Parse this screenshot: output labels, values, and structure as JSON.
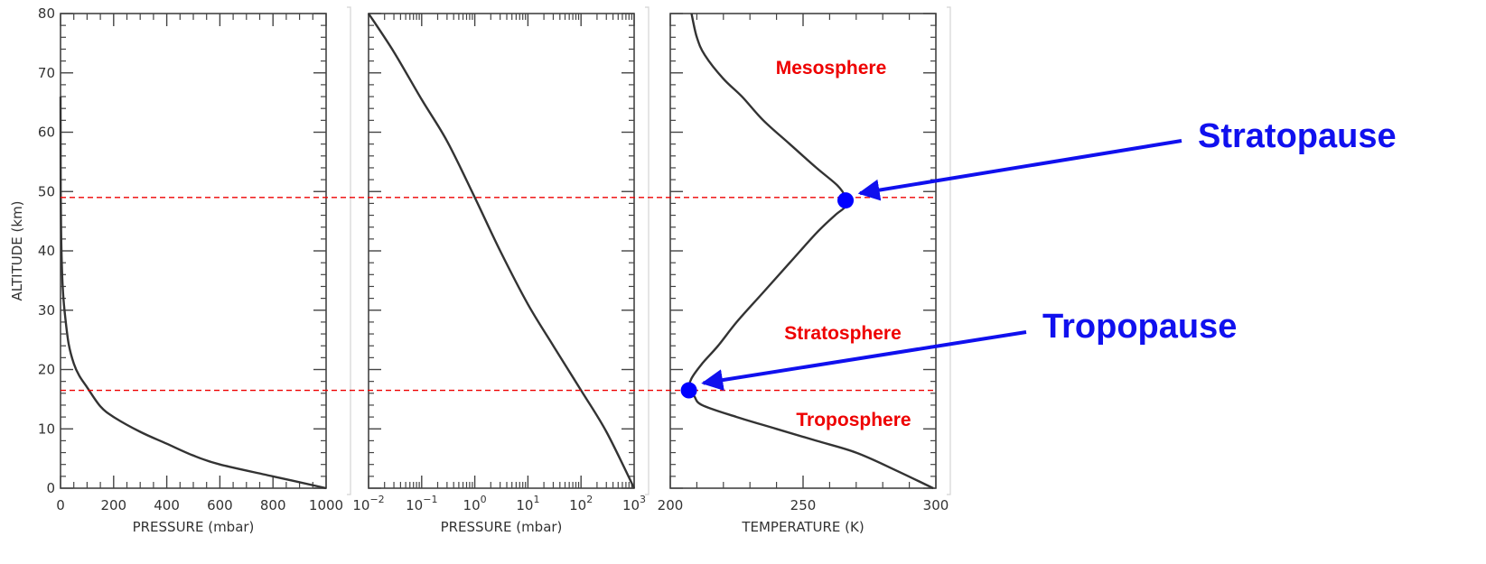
{
  "chart_data": [
    {
      "type": "line",
      "ylabel": "ALTITUDE (km)",
      "xlabel": "PRESSURE (mbar)",
      "xlim": [
        0,
        1000
      ],
      "ylim": [
        0,
        80
      ],
      "x_ticks": [
        "0",
        "200",
        "400",
        "600",
        "800",
        "1000"
      ],
      "y_ticks": [
        "0",
        "10",
        "20",
        "30",
        "40",
        "50",
        "60",
        "70",
        "80"
      ],
      "series": [
        {
          "x": [
            1000,
            800,
            600,
            500,
            400,
            300,
            200,
            150,
            100,
            70,
            50,
            30,
            15,
            8,
            4,
            2,
            0.8,
            0.3,
            0.1
          ],
          "y": [
            0,
            2,
            4,
            5.5,
            7.5,
            9.5,
            12,
            13.8,
            17,
            19,
            21,
            24.5,
            30,
            34,
            39,
            44,
            50,
            57,
            66
          ]
        }
      ]
    },
    {
      "type": "line",
      "xlabel": "PRESSURE (mbar)",
      "xscale": "log",
      "xlim": [
        0.01,
        1000
      ],
      "ylim": [
        0,
        80
      ],
      "x_ticks": [
        {
          "base": "10",
          "exp": "−2"
        },
        {
          "base": "10",
          "exp": "−1"
        },
        {
          "base": "10",
          "exp": "0"
        },
        {
          "base": "10",
          "exp": "1"
        },
        {
          "base": "10",
          "exp": "2"
        },
        {
          "base": "10",
          "exp": "3"
        }
      ],
      "series": [
        {
          "x": [
            1000,
            300,
            100,
            30,
            10,
            3,
            1,
            0.3,
            0.1,
            0.03,
            0.01
          ],
          "y": [
            0,
            9.5,
            16.5,
            24,
            31,
            40,
            49,
            58.5,
            65.5,
            73.5,
            80
          ]
        }
      ]
    },
    {
      "type": "line",
      "xlabel": "TEMPERATURE (K)",
      "xlim": [
        200,
        300
      ],
      "ylim": [
        0,
        80
      ],
      "x_ticks": [
        "200",
        "250",
        "300"
      ],
      "series": [
        {
          "x": [
            299,
            285,
            270,
            255,
            240,
            225,
            212,
            209,
            207,
            208,
            212,
            218,
            225,
            235,
            245,
            255,
            262,
            266,
            266,
            263,
            255,
            245,
            235,
            227,
            220,
            213,
            210,
            208
          ],
          "y": [
            0,
            3,
            6,
            8,
            10,
            12,
            14,
            15.5,
            16.5,
            18.5,
            21,
            24,
            28,
            33,
            38,
            43,
            46,
            47.5,
            49,
            51,
            54,
            58,
            62,
            66,
            69,
            73,
            76,
            80
          ]
        }
      ],
      "region_labels": [
        "Mesosphere",
        "Stratosphere",
        "Troposphere"
      ],
      "points": [
        {
          "name": "Stratopause",
          "x": 266,
          "y": 48.5
        },
        {
          "name": "Tropopause",
          "x": 207,
          "y": 16.5
        }
      ]
    }
  ],
  "reference_lines_km": [
    49,
    16.5
  ],
  "annotations": {
    "stratopause": "Stratopause",
    "tropopause": "Tropopause"
  },
  "colors": {
    "curve": "#333333",
    "frame": "#444444",
    "reference_line": "#ee0000",
    "region_label": "#ee0000",
    "marker": "#0000ff",
    "pause_label": "#1010ee",
    "arrow": "#1010ee"
  }
}
